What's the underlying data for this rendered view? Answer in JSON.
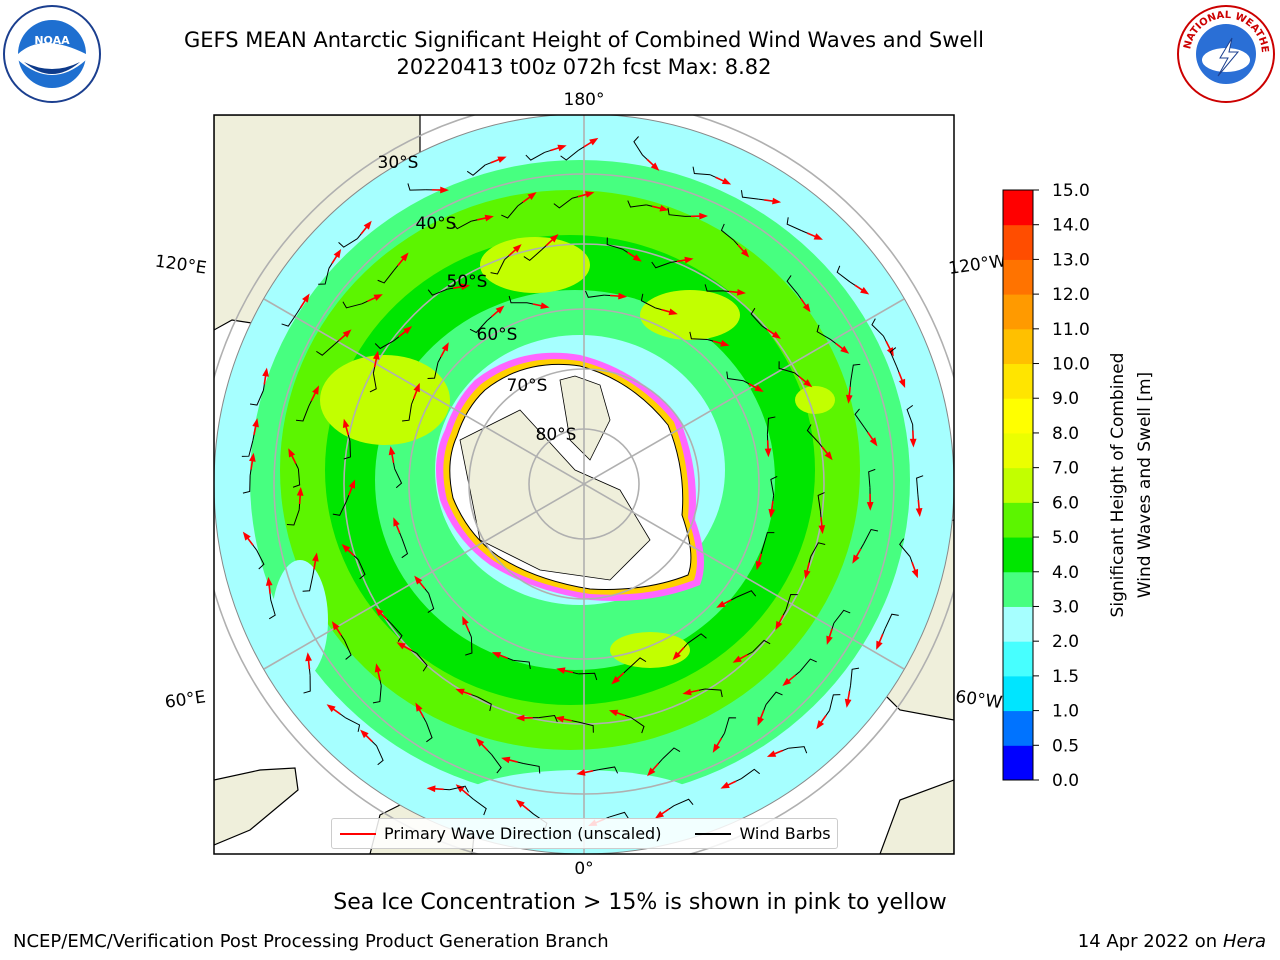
{
  "title": {
    "line1": "GEFS MEAN Antarctic Significant Height of Combined Wind Waves and Swell",
    "line2": "20220413 t00z 072h fcst   Max: 8.82"
  },
  "logos": {
    "left": "NOAA",
    "right": "NATIONAL WEATHER SERVICE"
  },
  "map": {
    "projection": "south-polar-stereographic",
    "longitude_labels": [
      "180°",
      "120°E",
      "120°W",
      "60°E",
      "60°W",
      "0°"
    ],
    "latitude_labels": [
      "30°S",
      "40°S",
      "50°S",
      "60°S",
      "70°S",
      "80°S"
    ]
  },
  "colorbar": {
    "label_line1": "Significant Height of Combined",
    "label_line2": "Wind Waves and Swell [m]",
    "ticks": [
      "0.0",
      "0.5",
      "1.0",
      "1.5",
      "2.0",
      "3.0",
      "4.0",
      "5.0",
      "6.0",
      "7.0",
      "8.0",
      "9.0",
      "10.0",
      "11.0",
      "12.0",
      "13.0",
      "14.0",
      "15.0"
    ],
    "colors": [
      "#0000ff",
      "#0073ff",
      "#00e5ff",
      "#47ffff",
      "#a6ffff",
      "#47ff80",
      "#00e600",
      "#5cf500",
      "#c2ff00",
      "#ebff00",
      "#ffff00",
      "#ffe500",
      "#ffc000",
      "#ff9a00",
      "#ff7300",
      "#ff4d00",
      "#ff0000"
    ]
  },
  "legend": {
    "wave_direction": "Primary Wave Direction (unscaled)",
    "wind_barbs": "Wind Barbs",
    "wave_color": "#ff0000",
    "barb_color": "#000000"
  },
  "note": "Sea Ice Concentration > 15% is shown in pink to yellow",
  "footer": {
    "left": "NCEP/EMC/Verification Post Processing Product Generation Branch",
    "right_date": "14 Apr 2022 on ",
    "right_host": "Hera"
  }
}
